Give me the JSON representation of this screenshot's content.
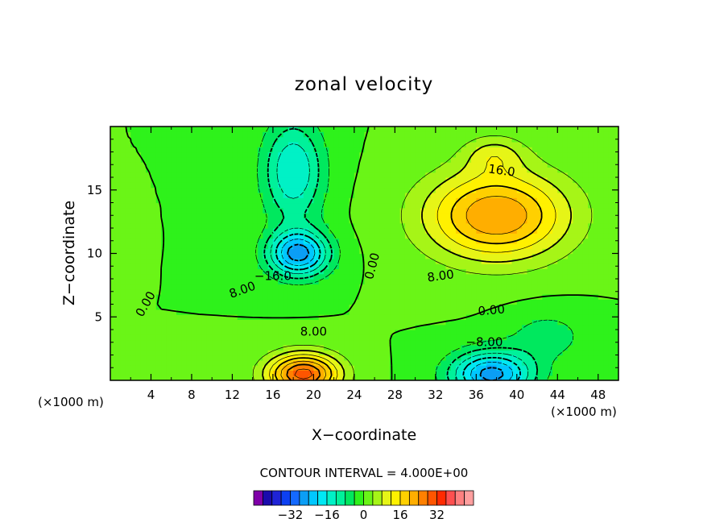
{
  "chart_data": {
    "type": "heatmap",
    "title": "zonal velocity",
    "xlabel": "X−coordinate",
    "ylabel": "Z−coordinate",
    "x_unit_left": "(×1000 m)",
    "x_unit_right": "(×1000 m)",
    "xlim": [
      0,
      50
    ],
    "ylim": [
      0,
      20
    ],
    "x_ticks": [
      "4",
      "8",
      "12",
      "16",
      "20",
      "24",
      "28",
      "32",
      "36",
      "40",
      "44",
      "48"
    ],
    "x_tick_values": [
      4,
      8,
      12,
      16,
      20,
      24,
      28,
      32,
      36,
      40,
      44,
      48
    ],
    "y_ticks": [
      "5",
      "10",
      "15"
    ],
    "y_tick_values": [
      5,
      10,
      15
    ],
    "contour_interval_text": "CONTOUR INTERVAL = 4.000E+00",
    "contour_interval": 4,
    "contour_labels": [
      {
        "text": "16.0",
        "x": 38.5,
        "y": 16.5,
        "rot": 8
      },
      {
        "text": "−16.0",
        "x": 16.0,
        "y": 8.2,
        "rot": 0
      },
      {
        "text": "8.00",
        "x": 13.0,
        "y": 7.1,
        "rot": -20
      },
      {
        "text": "0.00",
        "x": 3.5,
        "y": 6.0,
        "rot": -60
      },
      {
        "text": "0.00",
        "x": 25.8,
        "y": 9.0,
        "rot": -75
      },
      {
        "text": "8.00",
        "x": 32.5,
        "y": 8.2,
        "rot": -8
      },
      {
        "text": "0.00",
        "x": 37.5,
        "y": 5.5,
        "rot": -5
      },
      {
        "text": "8.00",
        "x": 20.0,
        "y": 3.8,
        "rot": 0
      },
      {
        "text": "−8.00",
        "x": 36.8,
        "y": 3.0,
        "rot": 0
      }
    ],
    "features": [
      {
        "x": 38.0,
        "y": 13.0,
        "value": 24.0,
        "sx": 7.0,
        "sy": 3.5
      },
      {
        "x": 37.8,
        "y": 17.8,
        "value": 8.0,
        "sx": 3.0,
        "sy": 1.5
      },
      {
        "x": 18.5,
        "y": 10.0,
        "value": -26.0,
        "sx": 3.0,
        "sy": 1.8
      },
      {
        "x": 18.0,
        "y": 16.5,
        "value": -16.0,
        "sx": 3.0,
        "sy": 4.0
      },
      {
        "x": 19.0,
        "y": 0.5,
        "value": 30.0,
        "sx": 3.5,
        "sy": 1.6
      },
      {
        "x": 37.5,
        "y": 0.5,
        "value": -26.0,
        "sx": 4.0,
        "sy": 1.8
      },
      {
        "x": 43.0,
        "y": 3.5,
        "value": -6.0,
        "sx": 4.0,
        "sy": 2.0
      },
      {
        "x": 1.0,
        "y": 11.0,
        "value": 2.0,
        "sx": 1.0,
        "sy": 1.5
      }
    ],
    "colorbar": {
      "colors": [
        "#7f00a8",
        "#1a0bac",
        "#1f23d6",
        "#0d40f2",
        "#1469ff",
        "#0b9ef5",
        "#00c7ff",
        "#00e8f4",
        "#00f1c6",
        "#00f19a",
        "#00e85e",
        "#2ef21b",
        "#6af517",
        "#a6f517",
        "#e6f517",
        "#fff100",
        "#ffd000",
        "#ffae00",
        "#ff8000",
        "#ff5500",
        "#ff2a00",
        "#ff4f4f",
        "#ff8080",
        "#ff9f9f"
      ],
      "tick_labels": [
        "−32",
        "−16",
        "0",
        "16",
        "32"
      ],
      "tick_values": [
        -32,
        -16,
        0,
        16,
        32
      ],
      "min": -48,
      "step": 4
    }
  }
}
